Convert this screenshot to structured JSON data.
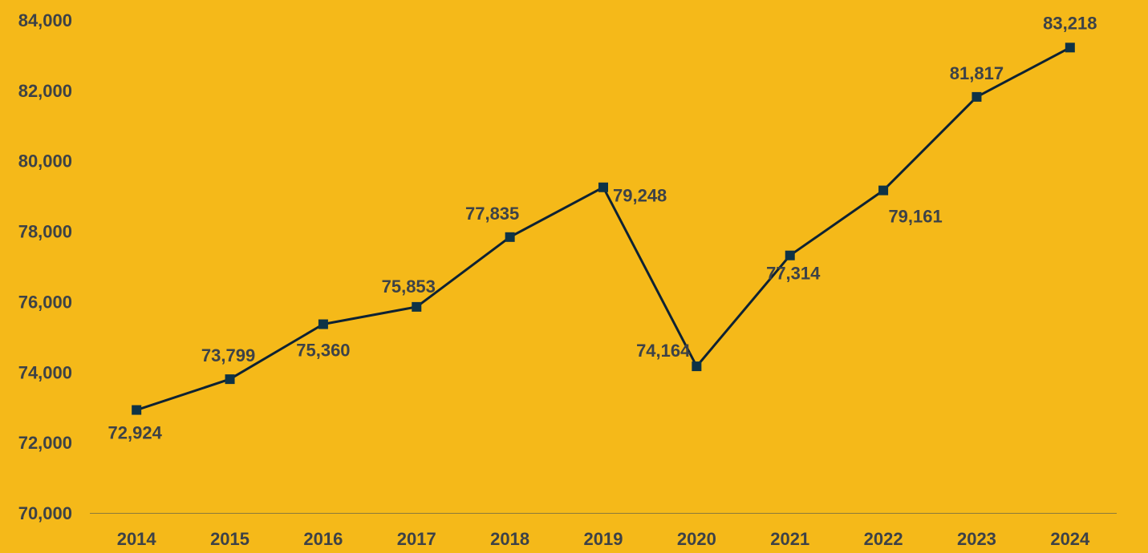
{
  "colors": {
    "background": "#F5B919",
    "line": "#0E2233",
    "marker": "#0E3346",
    "text": "#3D4247",
    "axis": "#8C7A3A"
  },
  "chart_data": {
    "type": "line",
    "title": "",
    "xlabel": "",
    "ylabel": "",
    "categories": [
      "2014",
      "2015",
      "2016",
      "2017",
      "2018",
      "2019",
      "2020",
      "2021",
      "2022",
      "2023",
      "2024"
    ],
    "values": [
      72924,
      73799,
      75360,
      75853,
      77835,
      79248,
      74164,
      77314,
      79161,
      81817,
      83218
    ],
    "data_labels": [
      "72,924",
      "73,799",
      "75,360",
      "75,853",
      "77,835",
      "79,248",
      "74,164",
      "77,314",
      "79,161",
      "81,817",
      "83,218"
    ],
    "ylim": [
      70000,
      84000
    ],
    "yticks": [
      70000,
      72000,
      74000,
      76000,
      78000,
      80000,
      82000,
      84000
    ],
    "ytick_labels": [
      "70,000",
      "72,000",
      "74,000",
      "76,000",
      "78,000",
      "80,000",
      "82,000",
      "84,000"
    ],
    "marker": "square",
    "grid": false,
    "legend": "none"
  }
}
